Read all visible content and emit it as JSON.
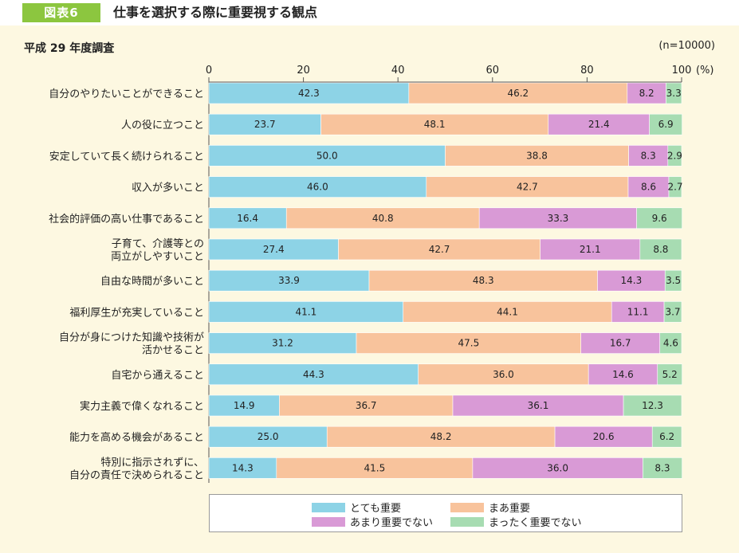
{
  "header": {
    "figure_label": "図表6",
    "figure_title": "仕事を選択する際に重要視する観点"
  },
  "subtitle": "平成 29 年度調査",
  "n_label": "(n=10000)",
  "colors": {
    "とても重要": "#8dd3e6",
    "まあ重要": "#f8c39c",
    "あまり重要でない": "#d99ad6",
    "まったく重要でない": "#a7dcb2"
  },
  "chart_data": {
    "type": "bar",
    "orientation": "horizontal",
    "stacked": true,
    "xlim": [
      0,
      100
    ],
    "xticks": [
      "0",
      "20",
      "40",
      "60",
      "80",
      "100"
    ],
    "x_unit": "(%)",
    "categories": [
      "自分のやりたいことができること",
      "人の役に立つこと",
      "安定していて長く続けられること",
      "収入が多いこと",
      "社会的評価の高い仕事であること",
      "子育て、介護等との\n両立がしやすいこと",
      "自由な時間が多いこと",
      "福利厚生が充実していること",
      "自分が身につけた知識や技術が\n活かせること",
      "自宅から通えること",
      "実力主義で偉くなれること",
      "能力を高める機会があること",
      "特別に指示されずに、\n自分の責任で決められること"
    ],
    "series": [
      {
        "name": "とても重要",
        "values": [
          42.3,
          23.7,
          50.0,
          46.0,
          16.4,
          27.4,
          33.9,
          41.1,
          31.2,
          44.3,
          14.9,
          25.0,
          14.3
        ]
      },
      {
        "name": "まあ重要",
        "values": [
          46.2,
          48.1,
          38.8,
          42.7,
          40.8,
          42.7,
          48.3,
          44.1,
          47.5,
          36.0,
          36.7,
          48.2,
          41.5
        ]
      },
      {
        "name": "あまり重要でない",
        "values": [
          8.2,
          21.4,
          8.3,
          8.6,
          33.3,
          21.1,
          14.3,
          11.1,
          16.7,
          14.6,
          36.1,
          20.6,
          36.0
        ]
      },
      {
        "name": "まったく重要でない",
        "values": [
          3.3,
          6.9,
          2.9,
          2.7,
          9.6,
          8.8,
          3.5,
          3.7,
          4.6,
          5.2,
          12.3,
          6.2,
          8.3
        ]
      }
    ],
    "legend_position": "bottom"
  }
}
